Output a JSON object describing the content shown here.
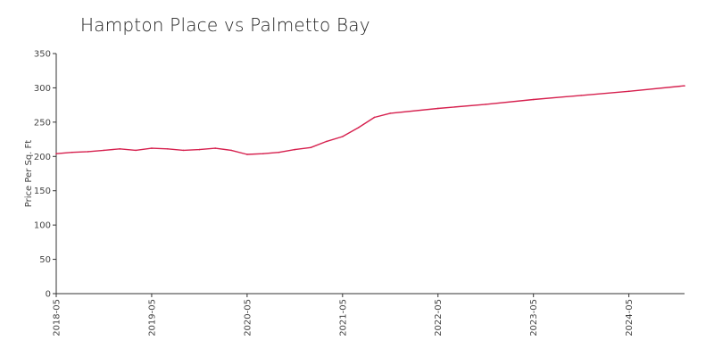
{
  "chart_data": {
    "type": "line",
    "title": "Hampton Place vs Palmetto Bay",
    "xlabel": "",
    "ylabel": "Price Per Sq. Ft",
    "ylim": [
      0,
      350
    ],
    "yticks": [
      0,
      50,
      100,
      150,
      200,
      250,
      300,
      350
    ],
    "xticks": [
      "2018-05",
      "2019-05",
      "2020-05",
      "2021-05",
      "2022-05",
      "2023-05",
      "2024-05"
    ],
    "xlim": [
      "2018-05",
      "2024-12"
    ],
    "grid": false,
    "series": [
      {
        "color": "#d6204e",
        "x": [
          "2018-05",
          "2018-07",
          "2018-09",
          "2018-11",
          "2019-01",
          "2019-03",
          "2019-05",
          "2019-07",
          "2019-09",
          "2019-11",
          "2020-01",
          "2020-03",
          "2020-05",
          "2020-07",
          "2020-09",
          "2020-11",
          "2021-01",
          "2021-03",
          "2021-05",
          "2021-07",
          "2021-09",
          "2021-11",
          "2022-05",
          "2022-11",
          "2023-05",
          "2023-11",
          "2024-05",
          "2024-12"
        ],
        "y": [
          204,
          206,
          207,
          209,
          211,
          209,
          212,
          211,
          209,
          210,
          212,
          209,
          203,
          204,
          206,
          210,
          213,
          222,
          229,
          242,
          257,
          263,
          270,
          276,
          283,
          289,
          295,
          303
        ]
      }
    ]
  }
}
